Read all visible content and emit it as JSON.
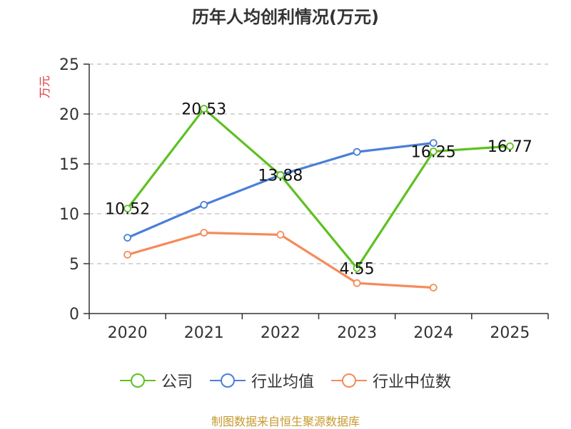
{
  "title": "历年人均创利情况(万元)",
  "source": "制图数据来自恒生聚源数据库",
  "colors": {
    "axis": "#333333",
    "grid": "#bdbdbd",
    "ylabel": "#d9363e",
    "source": "#c59a2d"
  },
  "chart_data": {
    "type": "line",
    "title": "历年人均创利情况(万元)",
    "xlabel": "",
    "ylabel": "万元",
    "categories": [
      "2020",
      "2021",
      "2022",
      "2023",
      "2024",
      "2025"
    ],
    "ylim": [
      0,
      25
    ],
    "yticks": [
      0,
      5,
      10,
      15,
      20,
      25
    ],
    "grid": true,
    "legend_position": "bottom",
    "series": [
      {
        "name": "公司",
        "color": "#5ec122",
        "values": [
          10.52,
          20.53,
          13.88,
          4.55,
          16.25,
          16.77
        ],
        "data_labels": [
          "10.52",
          "20.53",
          "13.88",
          "4.55",
          "16.25",
          "16.77"
        ]
      },
      {
        "name": "行业均值",
        "color": "#4a7fd8",
        "values": [
          7.6,
          10.9,
          13.9,
          16.2,
          17.1,
          null
        ]
      },
      {
        "name": "行业中位数",
        "color": "#f58b5a",
        "values": [
          5.9,
          8.1,
          7.9,
          3.05,
          2.6,
          null
        ]
      }
    ]
  }
}
